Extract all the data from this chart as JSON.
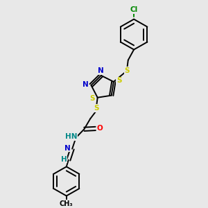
{
  "bg_color": "#e8e8e8",
  "bond_color": "#000000",
  "n_color": "#0000cc",
  "s_color": "#cccc00",
  "o_color": "#ff0000",
  "cl_color": "#008800",
  "h_color": "#008888",
  "lw": 1.4,
  "fs": 7.5,
  "xlim": [
    0,
    1
  ],
  "ylim": [
    0,
    1
  ]
}
